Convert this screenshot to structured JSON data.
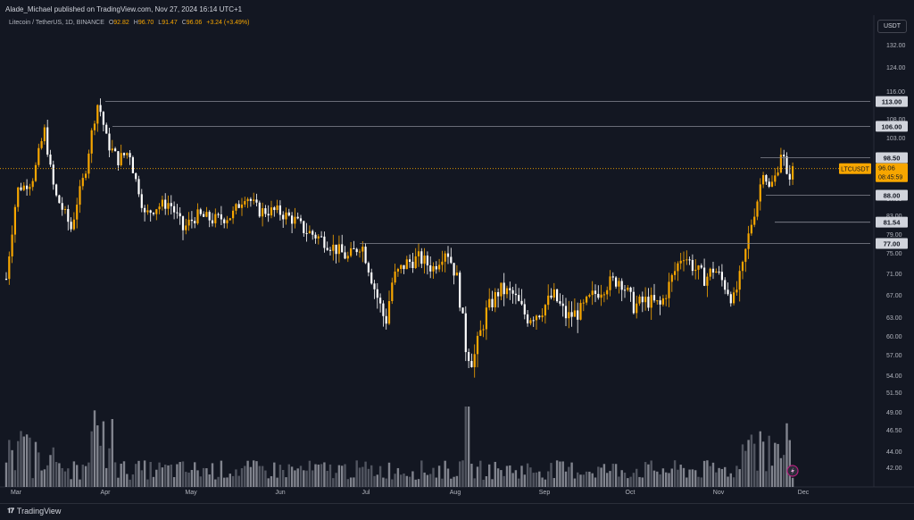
{
  "header": {
    "publisher": "Alade_Michael published on TradingView.com, Nov 27, 2024 16:14 UTC+1"
  },
  "legend": {
    "symbol": "Litecoin / TetherUS, 1D, BINANCE",
    "open_label": "O",
    "open": "92.82",
    "high_label": "H",
    "high": "96.70",
    "low_label": "L",
    "low": "91.47",
    "close_label": "C",
    "close": "96.06",
    "change": "+3.24 (+3.49%)"
  },
  "currency_button": "USDT",
  "price_axis": {
    "ticks": [
      "132.00",
      "124.00",
      "116.00",
      "108.00",
      "103.00",
      "95.00",
      "87.00",
      "83.00",
      "79.00",
      "75.00",
      "71.00",
      "67.00",
      "63.00",
      "60.00",
      "57.00",
      "54.00",
      "51.50",
      "49.00",
      "46.50",
      "44.00",
      "42.00"
    ]
  },
  "levels": [
    {
      "label": "113.00",
      "price": 113.0
    },
    {
      "label": "106.00",
      "price": 106.0
    },
    {
      "label": "98.50",
      "price": 98.5
    },
    {
      "label": "88.00",
      "price": 88.0
    },
    {
      "label": "81.54",
      "price": 81.54
    },
    {
      "label": "77.00",
      "price": 77.0
    }
  ],
  "last_price_tag": {
    "symbol": "LTCUSDT",
    "price": "96.06",
    "countdown": "08:45:59"
  },
  "time_axis": [
    "Mar",
    "Apr",
    "May",
    "Jun",
    "Jul",
    "Aug",
    "Sep",
    "Oct",
    "Nov",
    "Dec"
  ],
  "footer": {
    "brand": "TradingView"
  },
  "colors": {
    "up": "#f7a600",
    "down": "#ffffff",
    "bg": "#131722",
    "level": "#868993",
    "accent": "#f7a600"
  }
}
